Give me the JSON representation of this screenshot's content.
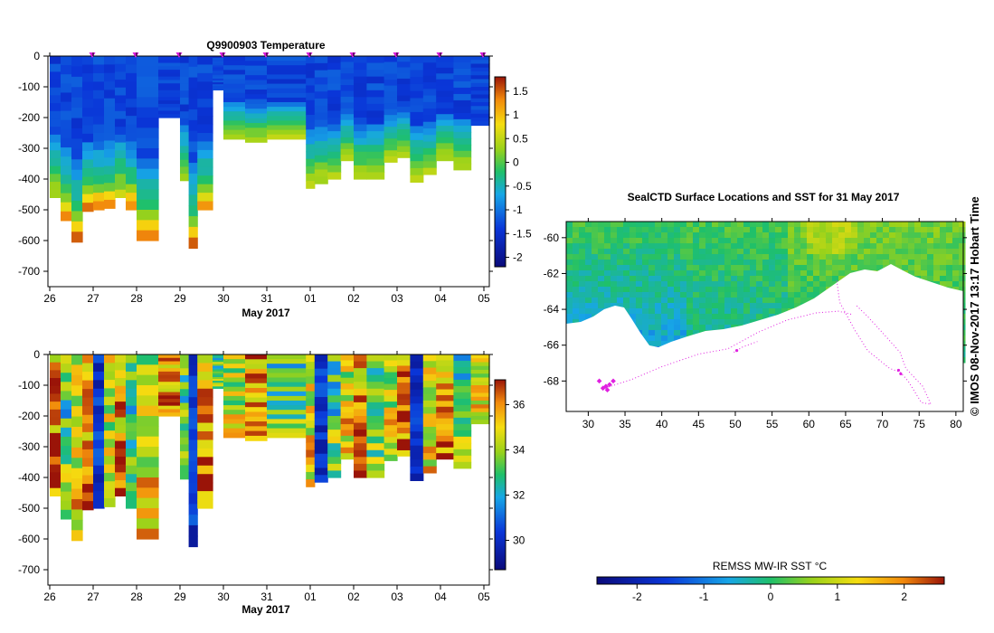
{
  "footer_text": "© IMOS 08-Nov-2017 13:17 Hobart Time",
  "chart_data": [
    {
      "type": "heatmap",
      "title": "Q9900903  Temperature",
      "xlabel": "May 2017",
      "ylabel": "",
      "x_tick_labels": [
        "26",
        "27",
        "28",
        "29",
        "30",
        "31",
        "01",
        "02",
        "03",
        "04",
        "05"
      ],
      "y_tick_labels": [
        "0",
        "-100",
        "-200",
        "-300",
        "-400",
        "-500",
        "-600",
        "-700"
      ],
      "ylim": [
        -750,
        0
      ],
      "colorbar": {
        "min": -2.2,
        "max": 1.8,
        "ticks": [
          "1.5",
          "1",
          "0.5",
          "0",
          "-0.5",
          "-1",
          "-1.5",
          "-2"
        ]
      },
      "surface_markers": [
        "27",
        "28",
        "29",
        "30",
        "31",
        "01",
        "02",
        "03",
        "04",
        "05"
      ],
      "profiles": [
        {
          "day": 26.0,
          "max_depth": 460
        },
        {
          "day": 26.25,
          "max_depth": 535
        },
        {
          "day": 26.5,
          "max_depth": 605
        },
        {
          "day": 26.75,
          "max_depth": 505
        },
        {
          "day": 27.0,
          "max_depth": 500
        },
        {
          "day": 27.25,
          "max_depth": 495
        },
        {
          "day": 27.5,
          "max_depth": 460
        },
        {
          "day": 27.75,
          "max_depth": 500
        },
        {
          "day": 28.0,
          "max_depth": 600
        },
        {
          "day": 28.5,
          "max_depth": 200
        },
        {
          "day": 29.0,
          "max_depth": 405
        },
        {
          "day": 29.2,
          "max_depth": 625
        },
        {
          "day": 29.4,
          "max_depth": 500
        },
        {
          "day": 29.75,
          "max_depth": 110
        },
        {
          "day": 30.0,
          "max_depth": 270
        },
        {
          "day": 30.5,
          "max_depth": 280
        },
        {
          "day": 31.0,
          "max_depth": 270
        },
        {
          "day": 31.9,
          "max_depth": 430
        },
        {
          "day": 32.1,
          "max_depth": 415
        },
        {
          "day": 32.4,
          "max_depth": 400
        },
        {
          "day": 32.7,
          "max_depth": 340
        },
        {
          "day": 33.0,
          "max_depth": 400
        },
        {
          "day": 33.3,
          "max_depth": 400
        },
        {
          "day": 33.7,
          "max_depth": 345
        },
        {
          "day": 34.0,
          "max_depth": 330
        },
        {
          "day": 34.3,
          "max_depth": 410
        },
        {
          "day": 34.6,
          "max_depth": 385
        },
        {
          "day": 34.9,
          "max_depth": 340
        },
        {
          "day": 35.3,
          "max_depth": 370
        },
        {
          "day": 35.7,
          "max_depth": 225
        }
      ]
    },
    {
      "type": "heatmap",
      "title": "",
      "xlabel": "May 2017",
      "ylabel": "",
      "x_tick_labels": [
        "26",
        "27",
        "28",
        "29",
        "30",
        "31",
        "01",
        "02",
        "03",
        "04",
        "05"
      ],
      "y_tick_labels": [
        "0",
        "-100",
        "-200",
        "-300",
        "-400",
        "-500",
        "-600",
        "-700"
      ],
      "ylim": [
        -750,
        0
      ],
      "colorbar": {
        "min": 28.7,
        "max": 37.1,
        "ticks": [
          "36",
          "34",
          "32",
          "30"
        ]
      }
    },
    {
      "type": "heatmap",
      "title": "SealCTD Surface Locations and SST for 31 May 2017",
      "xlabel": "",
      "ylabel": "",
      "x_tick_labels": [
        "30",
        "35",
        "40",
        "45",
        "50",
        "55",
        "60",
        "65",
        "70",
        "75",
        "80"
      ],
      "y_tick_labels": [
        "-60",
        "-62",
        "-64",
        "-66",
        "-68"
      ],
      "xlim": [
        27,
        81
      ],
      "ylim": [
        -69.7,
        -59.1
      ],
      "colorbar": {
        "label": "REMSS MW-IR SST °C",
        "min": -2.6,
        "max": 2.6,
        "ticks": [
          "-2",
          "-1",
          "0",
          "1",
          "2"
        ]
      }
    }
  ]
}
